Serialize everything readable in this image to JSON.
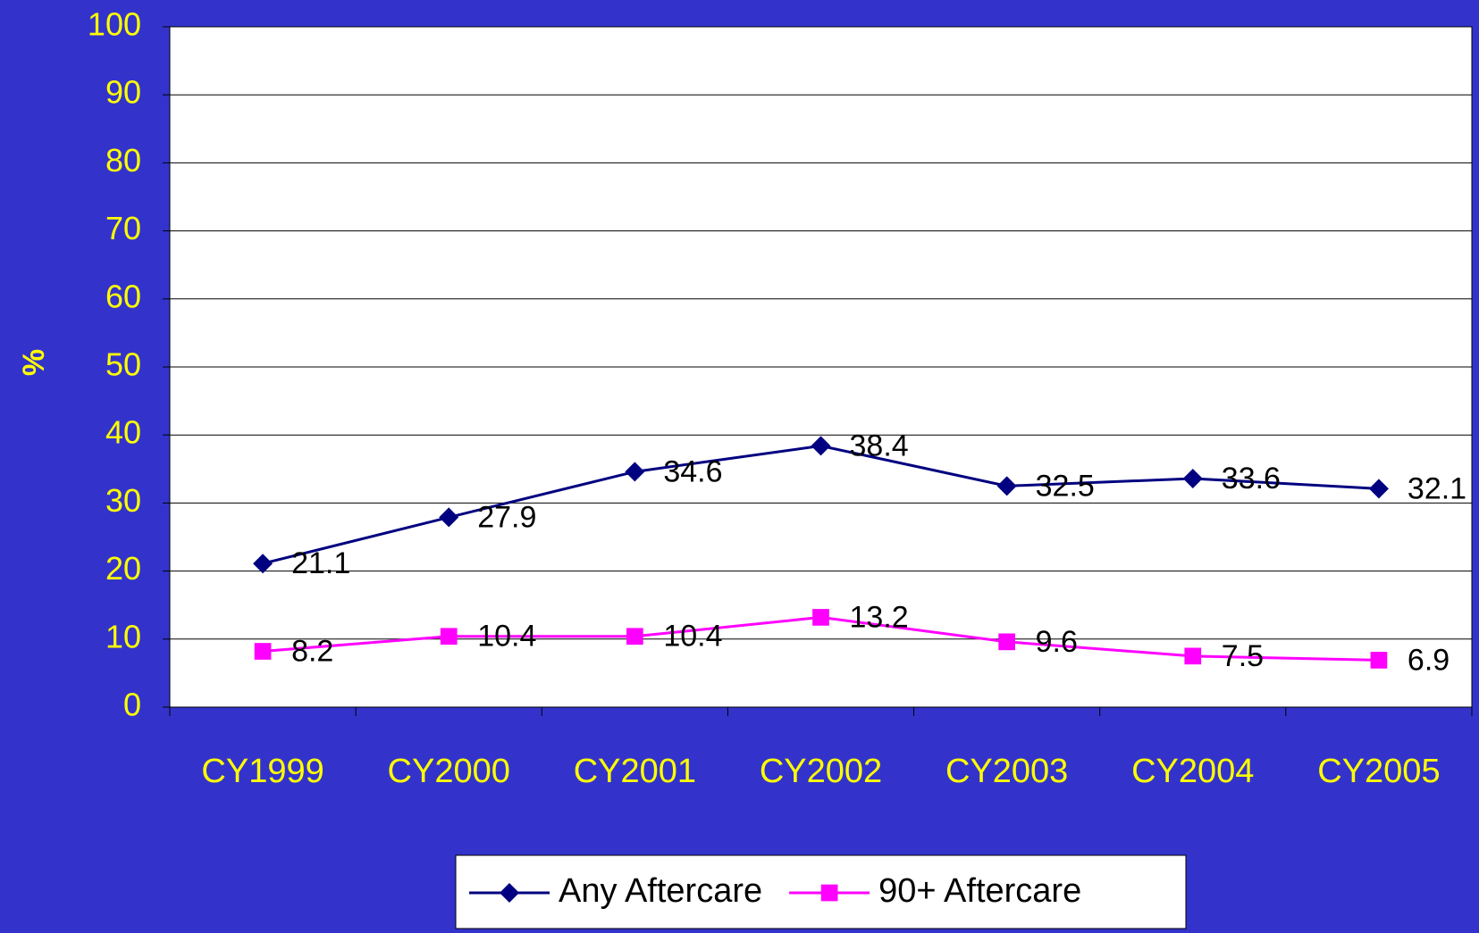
{
  "chart_data": {
    "type": "line",
    "y_label": "%",
    "categories": [
      "CY1999",
      "CY2000",
      "CY2001",
      "CY2002",
      "CY2003",
      "CY2004",
      "CY2005"
    ],
    "series": [
      {
        "name": "Any Aftercare",
        "color": "#000080",
        "marker": "diamond",
        "values": [
          21.1,
          27.9,
          34.6,
          38.4,
          32.5,
          33.6,
          32.1
        ]
      },
      {
        "name": "90+ Aftercare",
        "color": "#ff00ff",
        "marker": "square",
        "values": [
          8.2,
          10.4,
          10.4,
          13.2,
          9.6,
          7.5,
          6.9
        ]
      }
    ],
    "ylim": [
      0,
      100
    ],
    "yticks": [
      0,
      10,
      20,
      30,
      40,
      50,
      60,
      70,
      80,
      90,
      100
    ],
    "grid": true,
    "legend": "bottom"
  }
}
